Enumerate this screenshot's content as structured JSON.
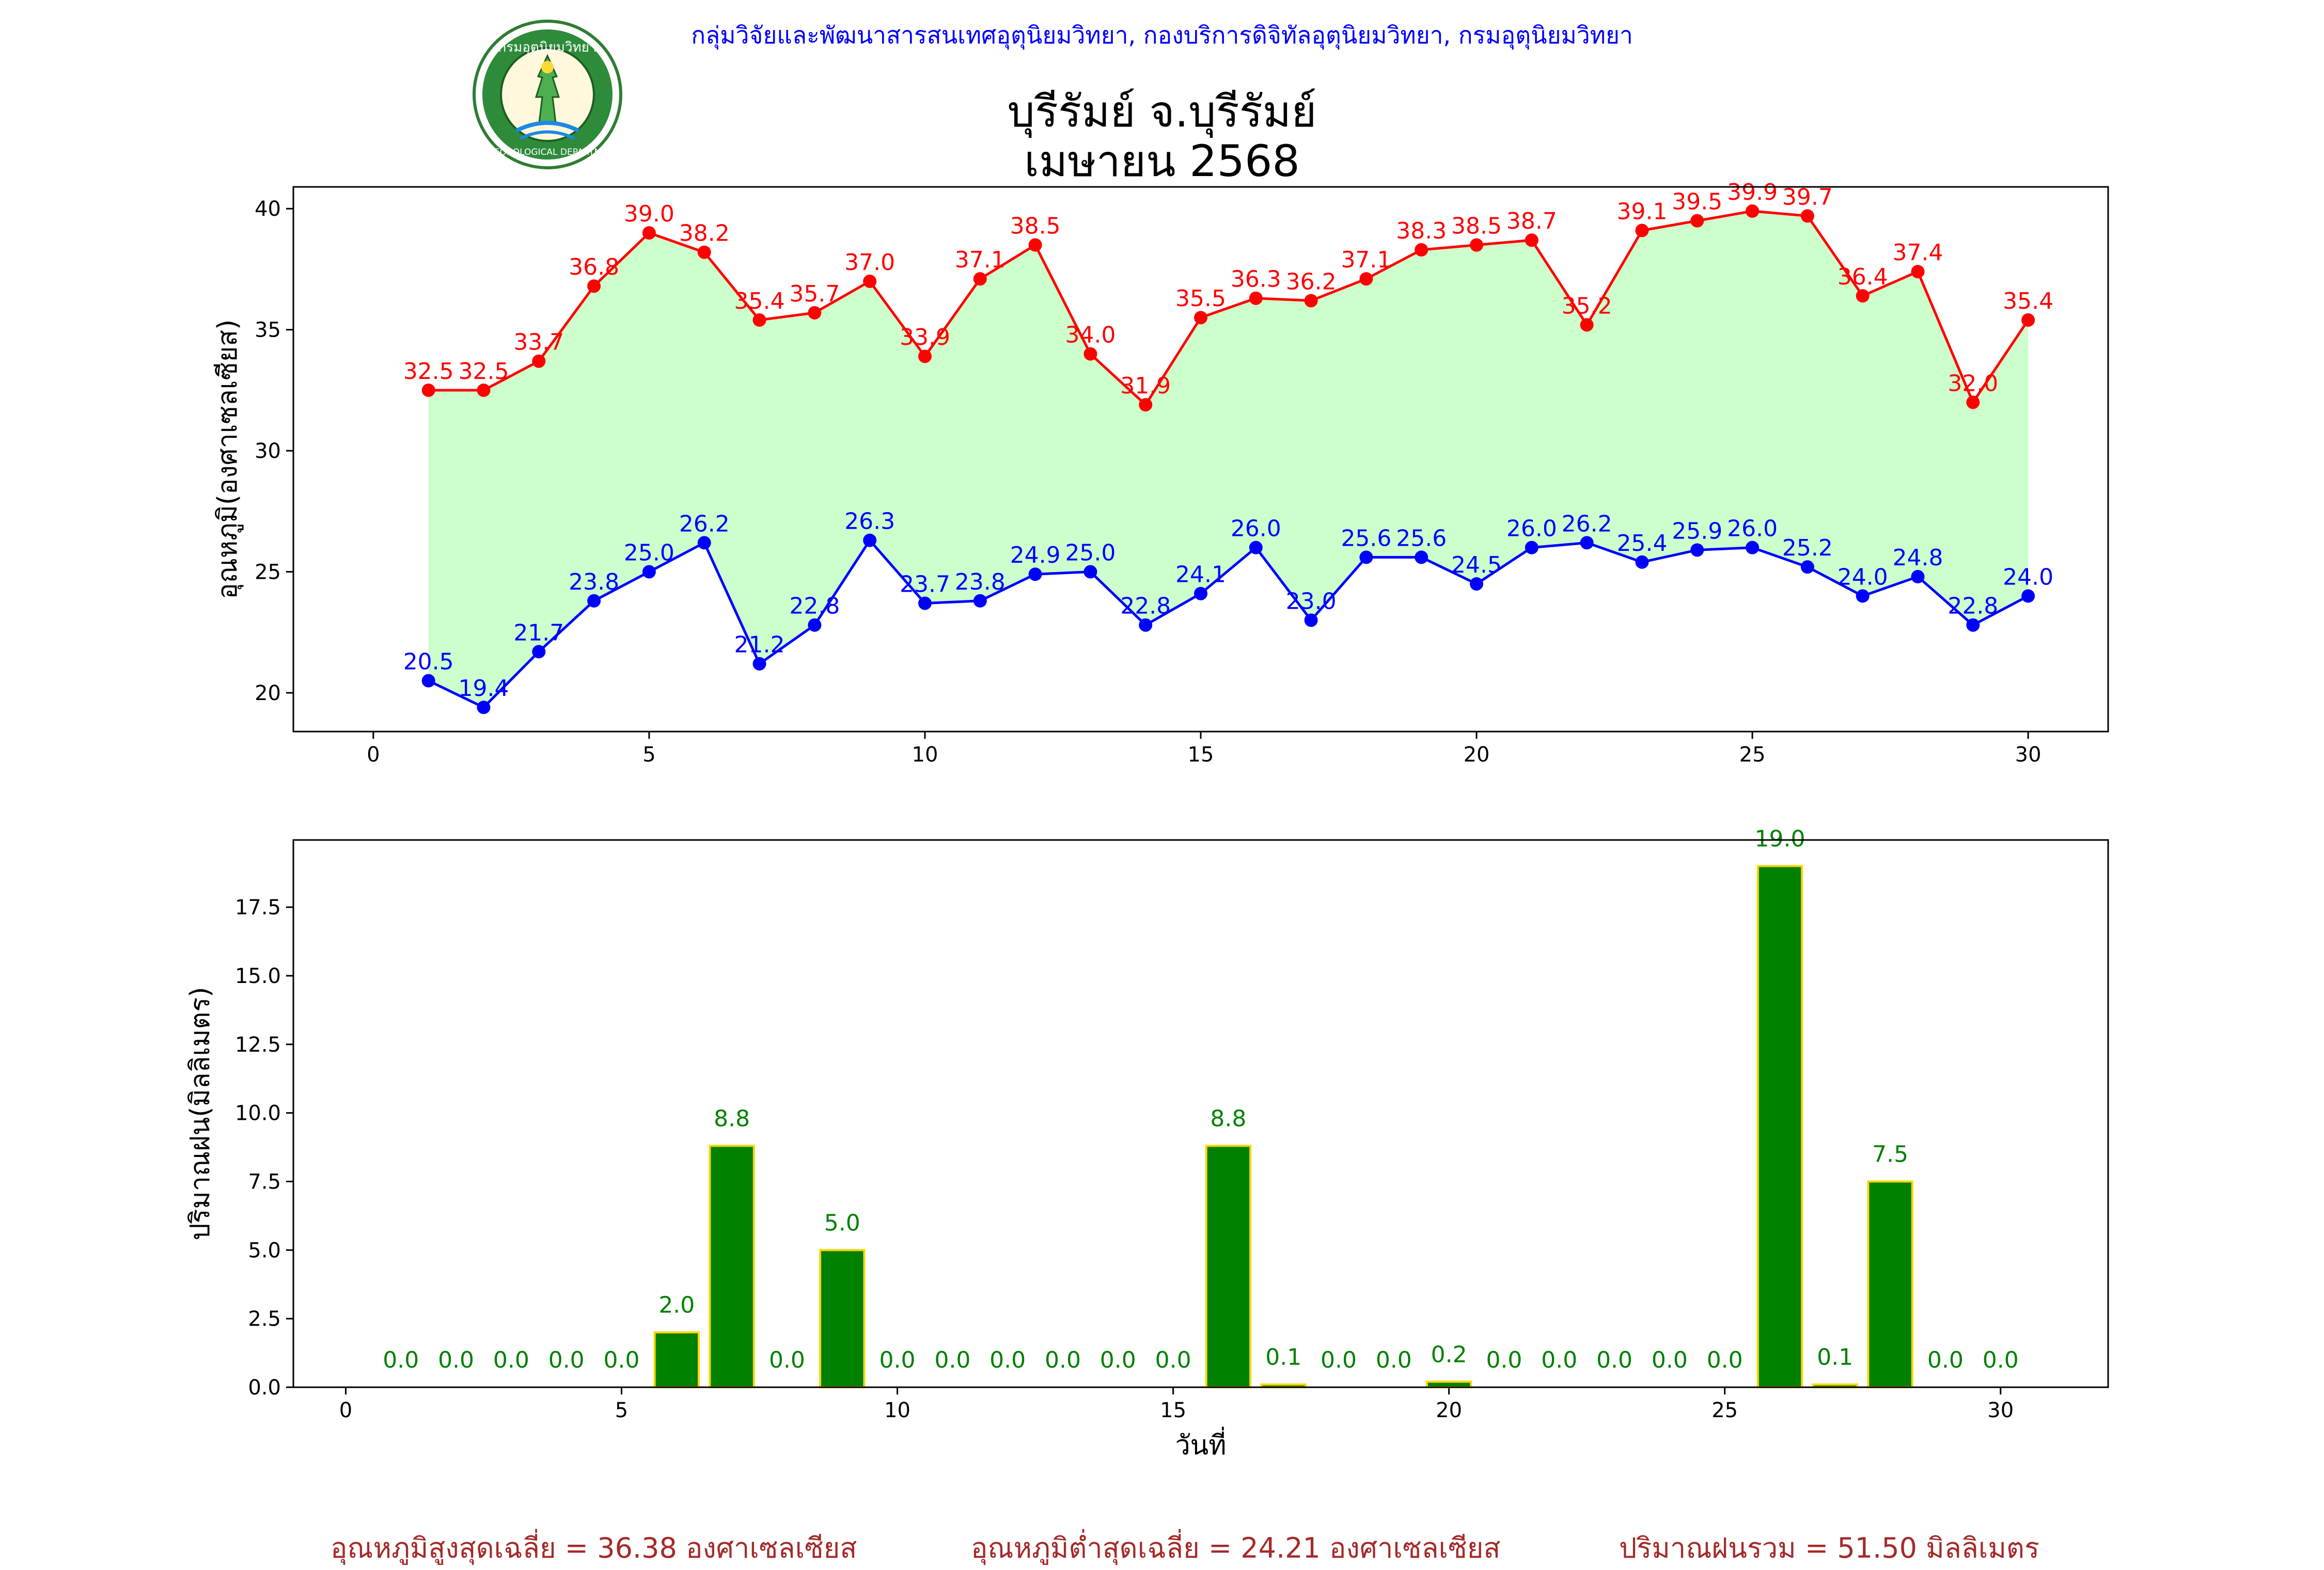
{
  "header": {
    "agency": "กลุ่มวิจัยและพัฒนาสารสนเทศอุตุนิยมวิทยา, กองบริการดิจิทัลอุตุนิยมวิทยา, กรมอุตุนิยมวิทยา",
    "logo_top_text": "กรมอุตุนิยมวิทยา",
    "logo_bottom_text": "METEOROLOGICAL DEPARTMENT"
  },
  "chart_title": {
    "station": "บุรีรัมย์ จ.บุรีรัมย์",
    "period": "เมษายน 2568"
  },
  "summary": {
    "avg_max": "อุณหภูมิสูงสุดเฉลี่ย = 36.38 องศาเซลเซียส",
    "avg_min": "อุณหภูมิต่ำสุดเฉลี่ย = 24.21 องศาเซลเซียส",
    "total_rain": "ปริมาณฝนรวม = 51.50 มิลลิเมตร"
  },
  "colors": {
    "max_line": "#ff0000",
    "min_line": "#0000ff",
    "fill": "#ccffcc",
    "rain_bar": "#008000",
    "rain_edge": "#ffd700",
    "summary_text": "#a52a2a"
  },
  "chart_data": [
    {
      "type": "line",
      "ylabel": "อุณหภูมิ(องศาเซลเซียส)",
      "xlabel": "",
      "xlim": [
        -1.45,
        31.45
      ],
      "ylim": [
        18.4,
        40.9
      ],
      "xticks": [
        0,
        5,
        10,
        15,
        20,
        25,
        30
      ],
      "yticks": [
        20,
        25,
        30,
        35,
        40
      ],
      "x": [
        1,
        2,
        3,
        4,
        5,
        6,
        7,
        8,
        9,
        10,
        11,
        12,
        13,
        14,
        15,
        16,
        17,
        18,
        19,
        20,
        21,
        22,
        23,
        24,
        25,
        26,
        27,
        28,
        29,
        30
      ],
      "series": [
        {
          "name": "",
          "color": "#ff0000",
          "values": [
            32.5,
            32.5,
            33.7,
            36.8,
            39.0,
            38.2,
            35.4,
            35.7,
            37.0,
            33.9,
            37.1,
            38.5,
            34.0,
            31.9,
            35.5,
            36.3,
            36.2,
            37.1,
            38.3,
            38.5,
            38.7,
            35.2,
            39.1,
            39.5,
            39.9,
            39.7,
            36.4,
            37.4,
            32.0,
            35.4
          ]
        },
        {
          "name": "",
          "color": "#0000ff",
          "values": [
            20.5,
            19.4,
            21.7,
            23.8,
            25.0,
            26.2,
            21.2,
            22.8,
            26.3,
            23.7,
            23.8,
            24.9,
            25.0,
            22.8,
            24.1,
            26.0,
            23.0,
            25.6,
            25.6,
            24.5,
            26.0,
            26.2,
            25.4,
            25.9,
            26.0,
            25.2,
            24.0,
            24.8,
            22.8,
            24.0
          ]
        }
      ],
      "grid": false,
      "legend": "none"
    },
    {
      "type": "bar",
      "ylabel": "ปริมาณฝน(มิลลิเมตร)",
      "xlabel": "วันที่",
      "xlim": [
        -0.95,
        31.95
      ],
      "ylim": [
        0,
        19.95
      ],
      "xticks": [
        0,
        5,
        10,
        15,
        20,
        25,
        30
      ],
      "yticks": [
        "0.0",
        "2.5",
        "5.0",
        "7.5",
        "10.0",
        "12.5",
        "15.0",
        "17.5"
      ],
      "x": [
        1,
        2,
        3,
        4,
        5,
        6,
        7,
        8,
        9,
        10,
        11,
        12,
        13,
        14,
        15,
        16,
        17,
        18,
        19,
        20,
        21,
        22,
        23,
        24,
        25,
        26,
        27,
        28,
        29,
        30
      ],
      "values": [
        0.0,
        0.0,
        0.0,
        0.0,
        0.0,
        2.0,
        8.8,
        0.0,
        5.0,
        0.0,
        0.0,
        0.0,
        0.0,
        0.0,
        0.0,
        8.8,
        0.1,
        0.0,
        0.0,
        0.2,
        0.0,
        0.0,
        0.0,
        0.0,
        0.0,
        19.0,
        0.1,
        7.5,
        0.0,
        0.0
      ],
      "grid": false,
      "legend": "none"
    }
  ]
}
